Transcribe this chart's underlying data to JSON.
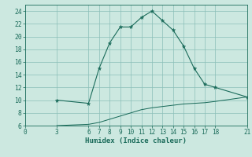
{
  "title": "",
  "xlabel": "Humidex (Indice chaleur)",
  "bg_color": "#cce8e0",
  "grid_color": "#8abfb8",
  "line_color": "#1a6b5a",
  "upper_x": [
    3,
    6,
    7,
    8,
    9,
    10,
    11,
    12,
    13,
    14,
    15,
    16,
    17,
    18,
    21
  ],
  "upper_y": [
    10,
    9.5,
    15,
    19,
    21.5,
    21.5,
    23,
    24,
    22.5,
    21,
    18.5,
    15,
    12.5,
    12,
    10.5
  ],
  "lower_x": [
    3,
    6,
    7,
    8,
    9,
    10,
    11,
    12,
    13,
    14,
    15,
    16,
    17,
    18,
    21
  ],
  "lower_y": [
    6,
    6.2,
    6.5,
    7.0,
    7.5,
    8.0,
    8.5,
    8.8,
    9.0,
    9.2,
    9.4,
    9.5,
    9.6,
    9.8,
    10.5
  ],
  "xlim": [
    0,
    21
  ],
  "ylim": [
    6,
    25
  ],
  "xticks": [
    0,
    3,
    6,
    7,
    8,
    9,
    10,
    11,
    12,
    13,
    14,
    15,
    16,
    17,
    18,
    21
  ],
  "yticks": [
    6,
    8,
    10,
    12,
    14,
    16,
    18,
    20,
    22,
    24
  ],
  "marker_symbol": "*",
  "marker_size": 3.5,
  "line_width": 0.8,
  "tick_fontsize": 5.5,
  "xlabel_fontsize": 6.5
}
